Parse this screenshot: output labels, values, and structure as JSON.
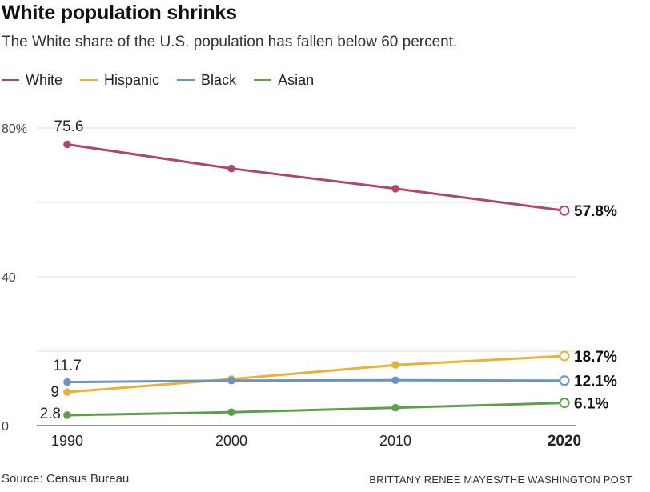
{
  "title": "White population shrinks",
  "subtitle": "The White share of the U.S. population has fallen below 60 percent.",
  "credits": {
    "source": "Source: Census Bureau",
    "byline": "BRITTANY RENEE MAYES/THE WASHINGTON POST"
  },
  "chart_data": {
    "type": "line",
    "x": [
      1990,
      2000,
      2010,
      2020
    ],
    "x_tick_labels": [
      "1990",
      "2000",
      "2010",
      "2020"
    ],
    "y_tick_labels": [
      "80%",
      "40",
      "0"
    ],
    "y_ticks": [
      80,
      40,
      0
    ],
    "ylim": [
      0,
      80
    ],
    "grid": true,
    "legend": "top-left",
    "series": [
      {
        "name": "White",
        "color": "#b0466a",
        "values": [
          75.6,
          69.1,
          63.7,
          57.8
        ],
        "start_label": "75.6",
        "end_label": "57.8%"
      },
      {
        "name": "Hispanic",
        "color": "#e8b234",
        "values": [
          9.0,
          12.5,
          16.3,
          18.7
        ],
        "start_label": "9",
        "end_label": "18.7%"
      },
      {
        "name": "Black",
        "color": "#6b93c4",
        "values": [
          11.7,
          12.1,
          12.2,
          12.1
        ],
        "start_label": "11.7",
        "end_label": "12.1%"
      },
      {
        "name": "Asian",
        "color": "#5f9e4d",
        "values": [
          2.8,
          3.6,
          4.8,
          6.1
        ],
        "start_label": "2.8",
        "end_label": "6.1%"
      }
    ]
  }
}
